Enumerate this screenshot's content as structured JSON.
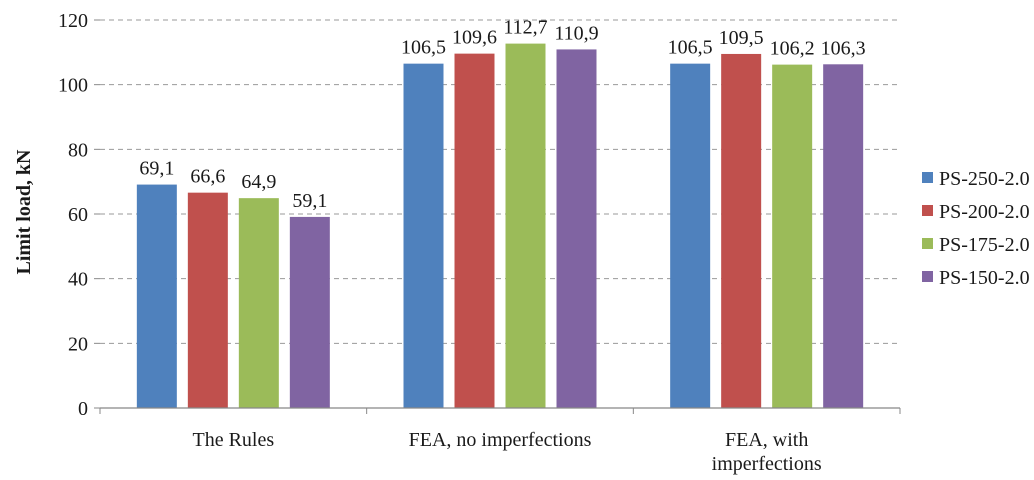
{
  "chart_data": {
    "type": "bar",
    "title": "",
    "xlabel": "",
    "ylabel": "Limit load, kN",
    "ylim": [
      0,
      120
    ],
    "yticks": [
      0,
      20,
      40,
      60,
      80,
      100,
      120
    ],
    "grid": true,
    "legend_position": "right",
    "categories": [
      [
        "The Rules"
      ],
      [
        "FEA, no imperfections"
      ],
      [
        "FEA, with",
        "imperfections"
      ]
    ],
    "series": [
      {
        "name": "PS-250-2.0",
        "color": "#4f81bd",
        "values": [
          69.1,
          106.5,
          106.5
        ],
        "labels": [
          "69,1",
          "106,5",
          "106,5"
        ]
      },
      {
        "name": "PS-200-2.0",
        "color": "#c0504d",
        "values": [
          66.6,
          109.6,
          109.5
        ],
        "labels": [
          "66,6",
          "109,6",
          "109,5"
        ]
      },
      {
        "name": "PS-175-2.0",
        "color": "#9bbb59",
        "values": [
          64.9,
          112.7,
          106.2
        ],
        "labels": [
          "64,9",
          "112,7",
          "106,2"
        ]
      },
      {
        "name": "PS-150-2.0",
        "color": "#8064a2",
        "values": [
          59.1,
          110.9,
          106.3
        ],
        "labels": [
          "59,1",
          "110,9",
          "106,3"
        ]
      }
    ]
  }
}
